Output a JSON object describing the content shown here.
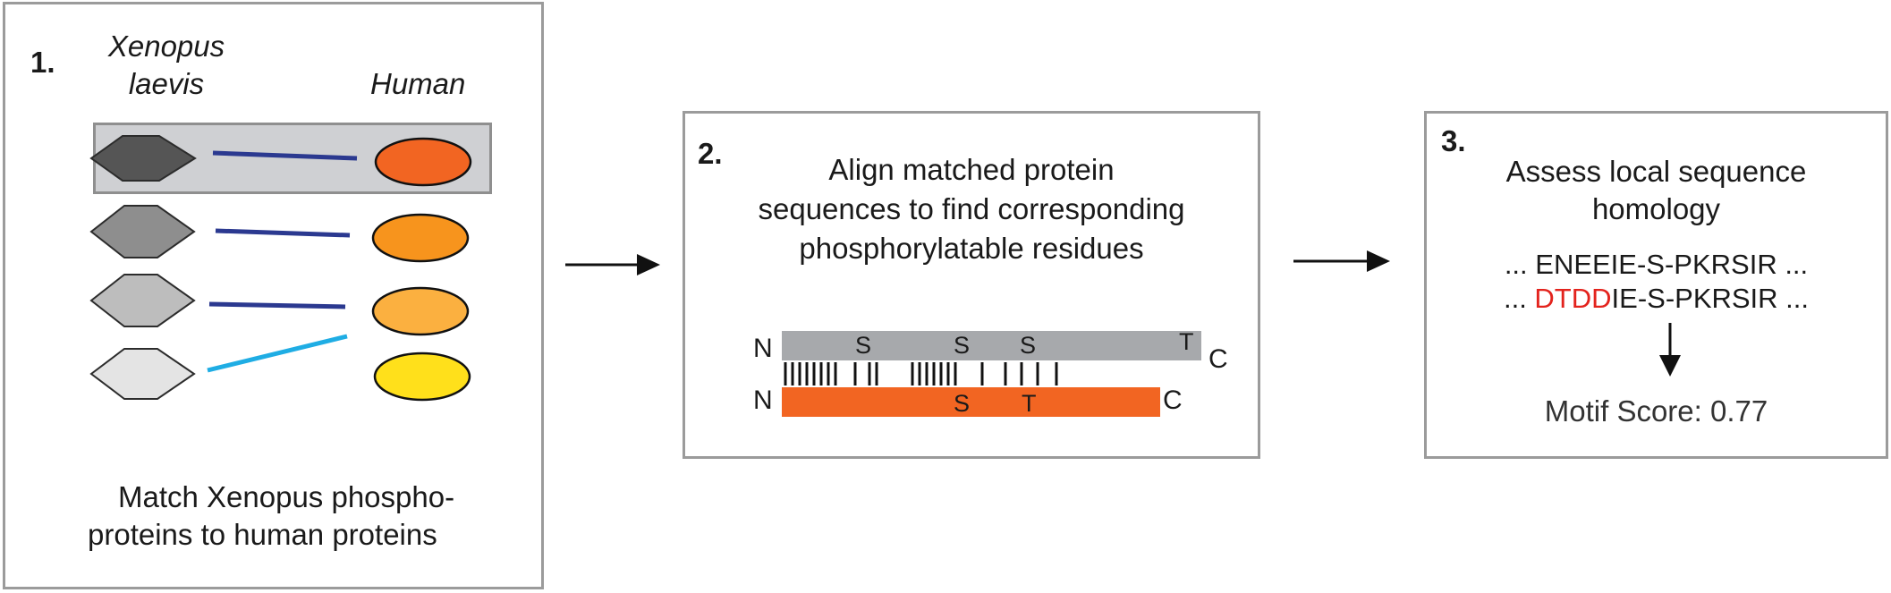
{
  "step1": {
    "number": "1.",
    "species_left_line1": "Xenopus",
    "species_left_line2": "laevis",
    "species_right": "Human",
    "caption_line1": "Match Xenopus phospho-",
    "caption_line2": "proteins to human proteins",
    "colors": {
      "hexagons": [
        "#555555",
        "#8e8e8e",
        "#bdbdbd",
        "#e4e4e4"
      ],
      "ovals": [
        "#f26522",
        "#f7941d",
        "#fbb040",
        "#ffe01b"
      ],
      "links": [
        "#2b3990",
        "#2b3990",
        "#2b3990",
        "#1fade4"
      ]
    }
  },
  "step2": {
    "number": "2.",
    "line1": "Align matched protein",
    "line2": "sequences to find corresponding",
    "line3": "phosphorylatable residues",
    "n_label": "N",
    "c_label": "C",
    "top_residues": [
      "S",
      "S",
      "S",
      "T"
    ],
    "bottom_residues": [
      "S",
      "T"
    ],
    "colors": {
      "top_bar": "#a7a9ac",
      "bottom_bar": "#f26522"
    }
  },
  "step3": {
    "number": "3.",
    "line1": "Assess local sequence",
    "line2": "homology",
    "seq1": "... ENEEIE-S-PKRSIR ...",
    "seq2_prefix": "... ",
    "seq2_highlight": "DTDD",
    "seq2_rest": "IE-S-PKRSIR ...",
    "score": "Motif Score: 0.77",
    "highlight_color": "#e3231d"
  }
}
